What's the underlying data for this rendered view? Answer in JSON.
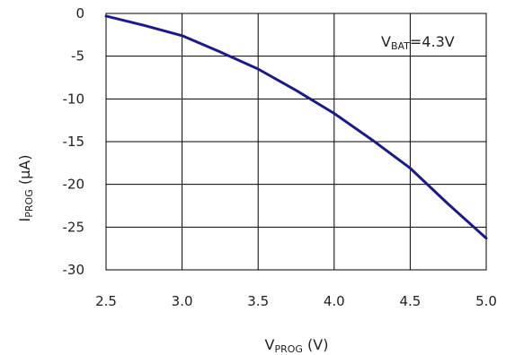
{
  "chart_data": {
    "type": "line",
    "title": "",
    "xlabel": {
      "main": "V",
      "sub": "PROG",
      "unit": " (V)"
    },
    "ylabel": {
      "main": "I",
      "sub": "PROG",
      "unit": " (µA)"
    },
    "xlim": [
      2.5,
      5.0
    ],
    "ylim": [
      -30,
      0
    ],
    "x_ticks": [
      "2.5",
      "3.0",
      "3.5",
      "4.0",
      "4.5",
      "5.0"
    ],
    "y_ticks": [
      "0",
      "-5",
      "-10",
      "-15",
      "-20",
      "-25",
      "-30"
    ],
    "grid": true,
    "annotation": {
      "main": "V",
      "sub": "BAT",
      "rest": "=4.3V"
    },
    "series": [
      {
        "color": "#1a1a8c",
        "x": [
          2.5,
          2.75,
          3.0,
          3.25,
          3.5,
          3.75,
          4.0,
          4.25,
          4.5,
          4.75,
          5.0
        ],
        "y": [
          -0.3,
          -1.4,
          -2.6,
          -4.5,
          -6.5,
          -9.0,
          -11.7,
          -14.8,
          -18.1,
          -22.3,
          -26.3
        ]
      }
    ]
  }
}
